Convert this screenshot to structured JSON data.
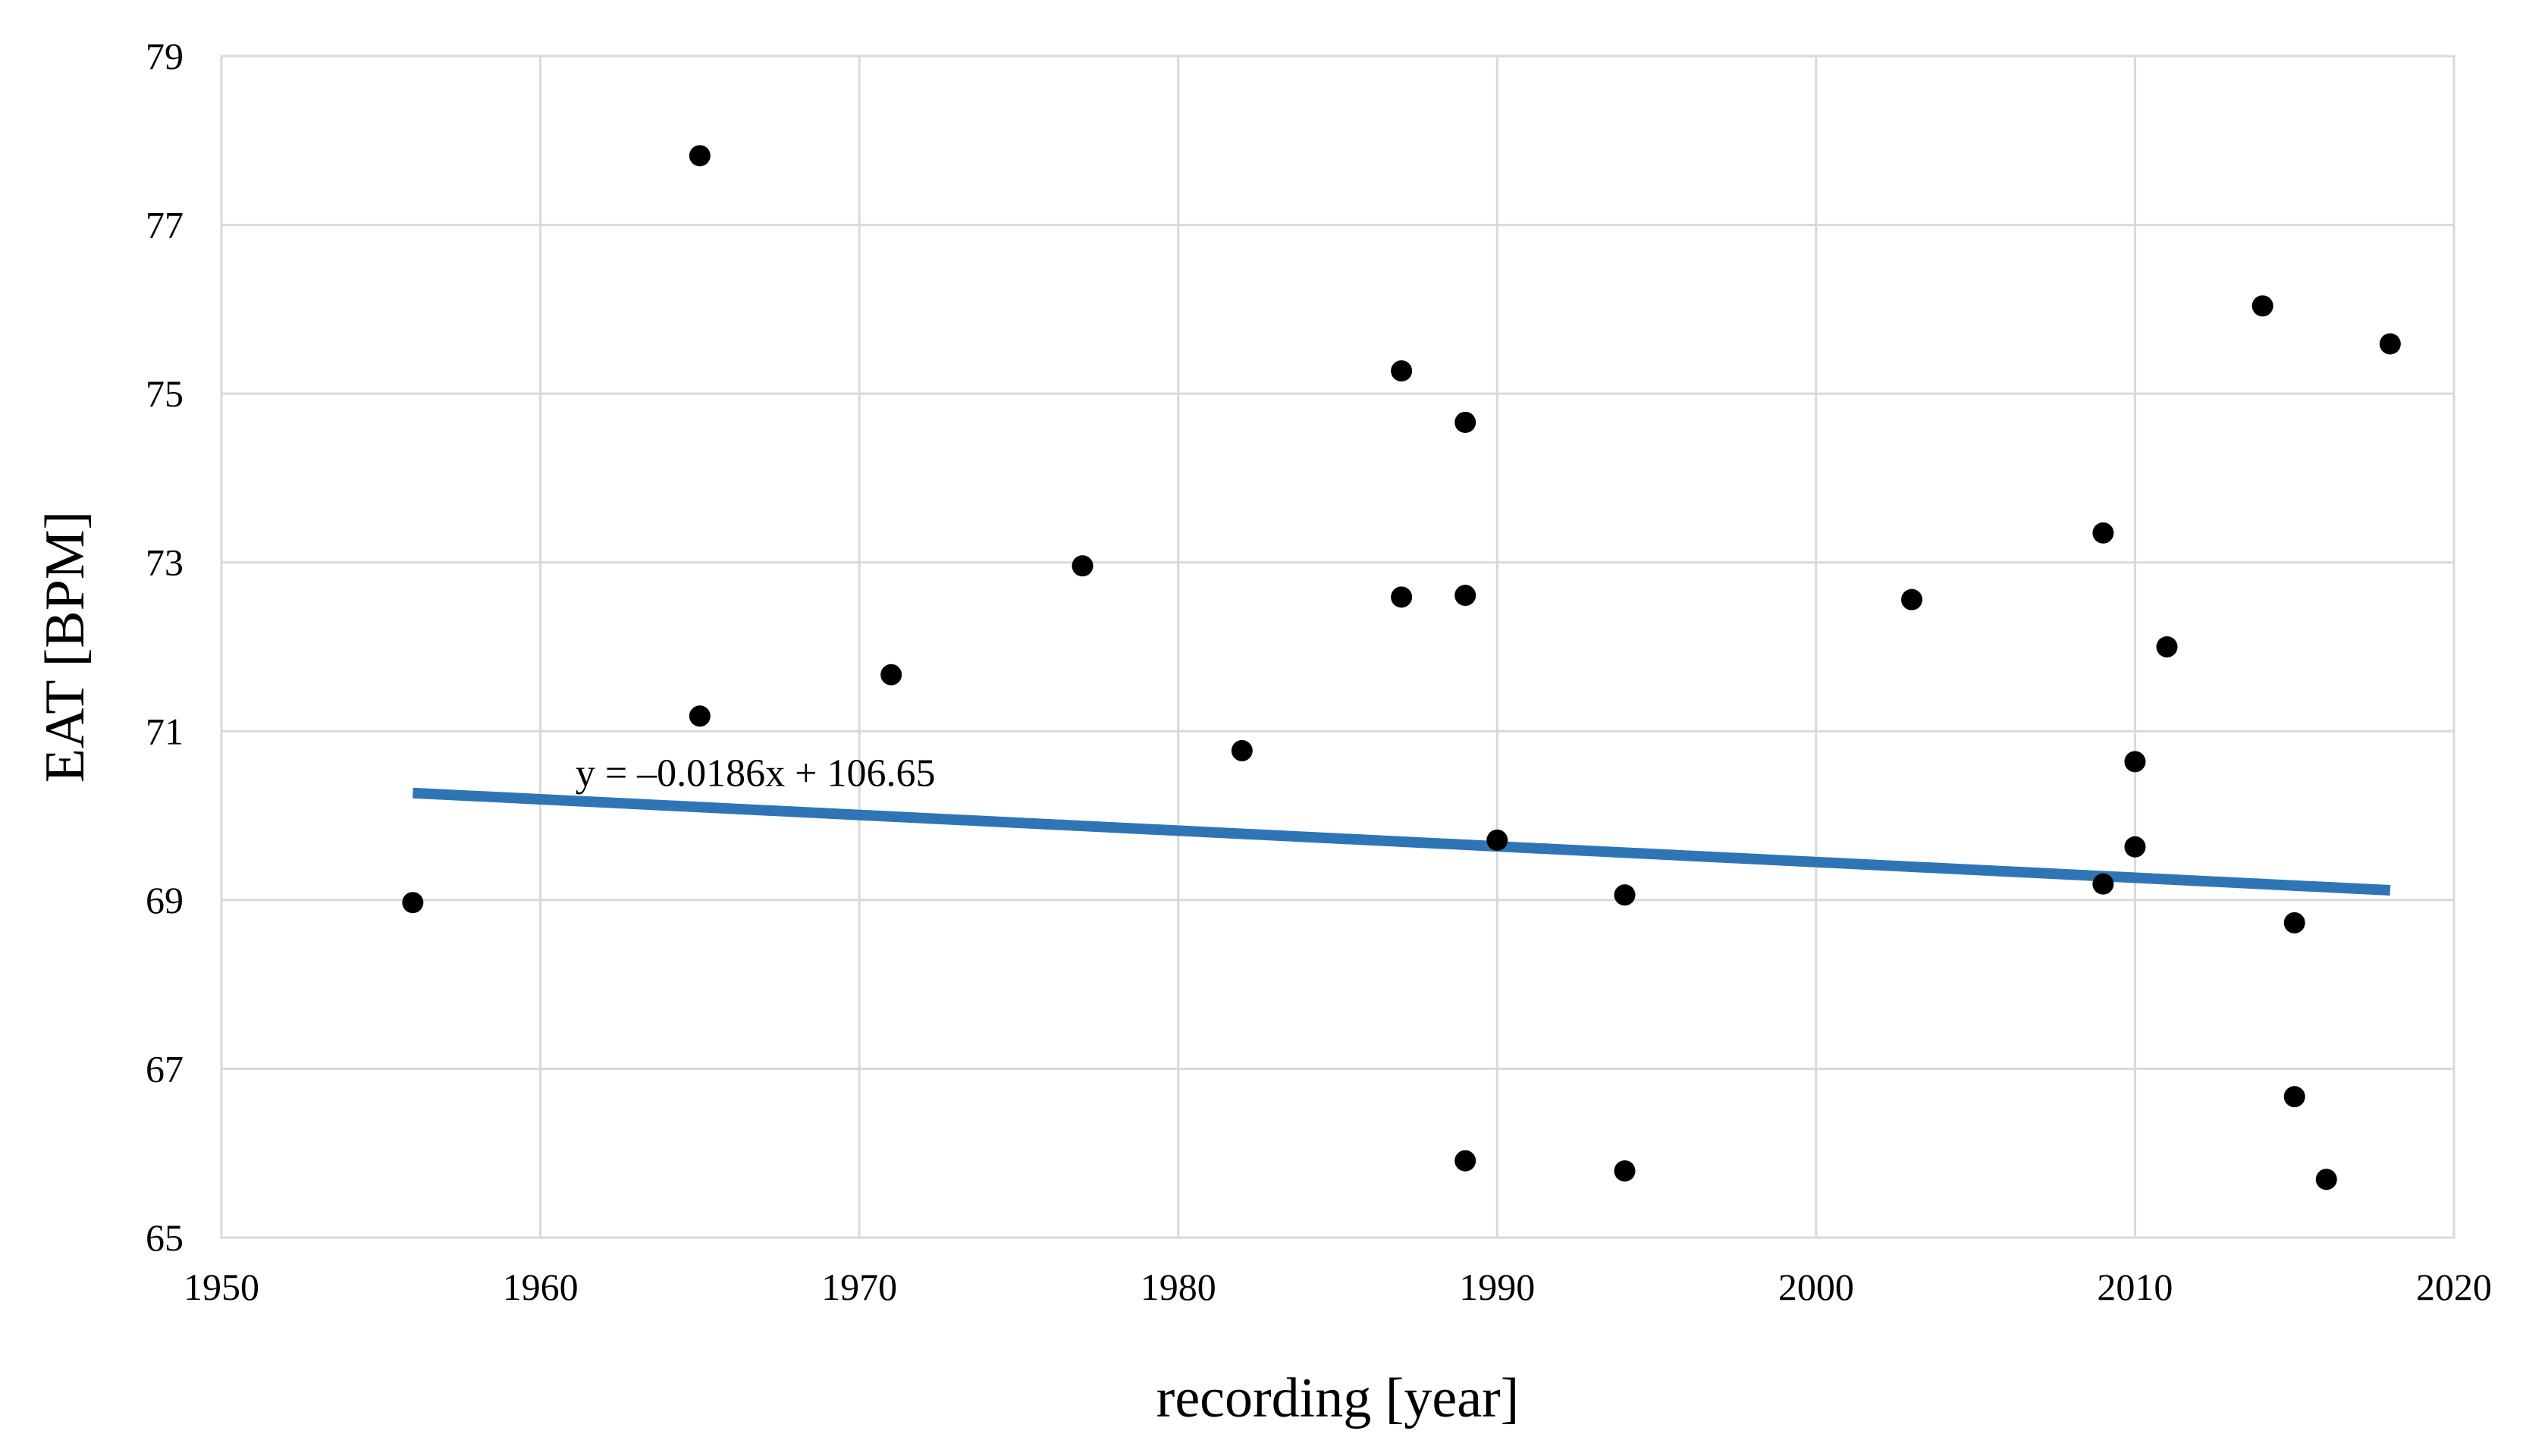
{
  "chart_data": {
    "type": "scatter",
    "title": "",
    "xlabel": "recording [year]",
    "ylabel": "EAT [BPM]",
    "xlim": [
      1950,
      2020
    ],
    "ylim": [
      65,
      79
    ],
    "xticks": [
      1950,
      1960,
      1970,
      1980,
      1990,
      2000,
      2010,
      2020
    ],
    "yticks": [
      65,
      67,
      69,
      71,
      73,
      75,
      77,
      79
    ],
    "grid": true,
    "marker_color": "#000000",
    "series": [
      {
        "name": "EAT",
        "points": [
          {
            "x": 1956,
            "y": 68.97
          },
          {
            "x": 1965,
            "y": 77.82
          },
          {
            "x": 1965,
            "y": 71.18
          },
          {
            "x": 1971,
            "y": 71.67
          },
          {
            "x": 1977,
            "y": 72.96
          },
          {
            "x": 1982,
            "y": 70.77
          },
          {
            "x": 1987,
            "y": 75.27
          },
          {
            "x": 1987,
            "y": 72.59
          },
          {
            "x": 1989,
            "y": 74.66
          },
          {
            "x": 1989,
            "y": 72.61
          },
          {
            "x": 1989,
            "y": 65.91
          },
          {
            "x": 1990,
            "y": 69.71
          },
          {
            "x": 1994,
            "y": 69.06
          },
          {
            "x": 1994,
            "y": 65.79
          },
          {
            "x": 2003,
            "y": 72.56
          },
          {
            "x": 2009,
            "y": 73.35
          },
          {
            "x": 2009,
            "y": 69.19
          },
          {
            "x": 2010,
            "y": 70.64
          },
          {
            "x": 2010,
            "y": 69.63
          },
          {
            "x": 2011,
            "y": 72.0
          },
          {
            "x": 2014,
            "y": 76.04
          },
          {
            "x": 2015,
            "y": 68.73
          },
          {
            "x": 2015,
            "y": 66.67
          },
          {
            "x": 2016,
            "y": 65.69
          },
          {
            "x": 2018,
            "y": 75.59
          }
        ]
      }
    ],
    "trendline": {
      "label": "y = –0.0186x + 106.65",
      "slope": -0.0186,
      "intercept": 106.65,
      "x_start": 1956,
      "x_end": 2018,
      "color": "#2e75b6"
    }
  }
}
